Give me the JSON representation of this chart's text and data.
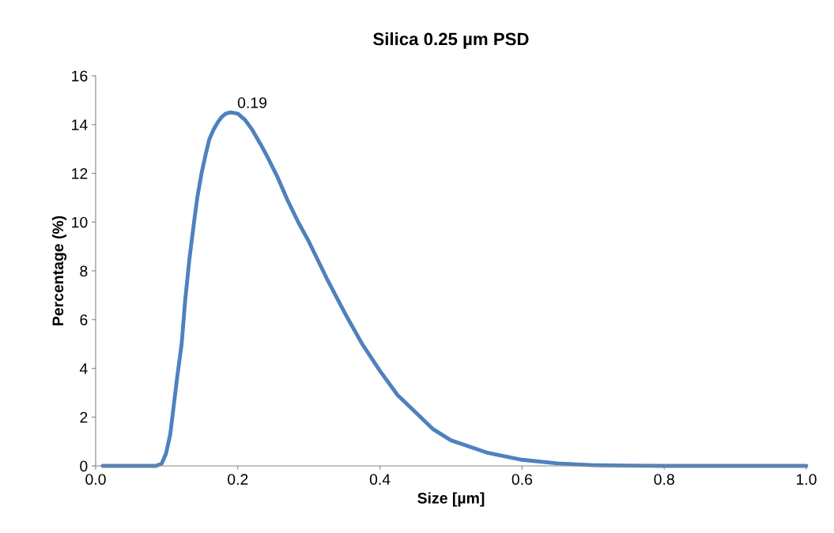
{
  "chart_data": {
    "type": "line",
    "title": "Silica 0.25 µm PSD",
    "xlabel": "Size [µm]",
    "ylabel": "Percentage (%)",
    "x": [
      0.01,
      0.03,
      0.05,
      0.07,
      0.085,
      0.093,
      0.099,
      0.105,
      0.11,
      0.115,
      0.121,
      0.126,
      0.132,
      0.138,
      0.143,
      0.149,
      0.155,
      0.16,
      0.166,
      0.172,
      0.177,
      0.183,
      0.19,
      0.2,
      0.21,
      0.22,
      0.232,
      0.243,
      0.255,
      0.27,
      0.285,
      0.3,
      0.325,
      0.35,
      0.375,
      0.4,
      0.425,
      0.45,
      0.475,
      0.5,
      0.55,
      0.6,
      0.65,
      0.7,
      0.75,
      0.8,
      0.9,
      1.0
    ],
    "series": [
      {
        "color": "#4f81bd",
        "values": [
          0,
          0,
          0,
          0,
          0,
          0.1,
          0.5,
          1.3,
          2.5,
          3.7,
          5.0,
          6.8,
          8.5,
          9.9,
          11.0,
          12.0,
          12.8,
          13.4,
          13.8,
          14.1,
          14.3,
          14.45,
          14.5,
          14.45,
          14.2,
          13.8,
          13.2,
          12.6,
          11.9,
          10.9,
          10.0,
          9.2,
          7.7,
          6.3,
          5.0,
          3.9,
          2.9,
          2.2,
          1.5,
          1.05,
          0.55,
          0.25,
          0.1,
          0.03,
          0.01,
          0,
          0,
          0
        ]
      }
    ],
    "xlim": [
      0,
      1.0
    ],
    "xticks": [
      {
        "value": 0,
        "label": "0.0"
      },
      0.2,
      0.4,
      0.6,
      0.8,
      {
        "value": 1.0,
        "label": "1.0"
      }
    ],
    "ylim": [
      0,
      16
    ],
    "yticks": [
      0,
      2,
      4,
      6,
      8,
      10,
      12,
      14,
      16
    ],
    "annotations": [
      {
        "text": "0.19",
        "x": 0.19,
        "y": 14.5
      }
    ],
    "grid": false,
    "legend": false,
    "marker": "none",
    "line_style": "solid"
  }
}
